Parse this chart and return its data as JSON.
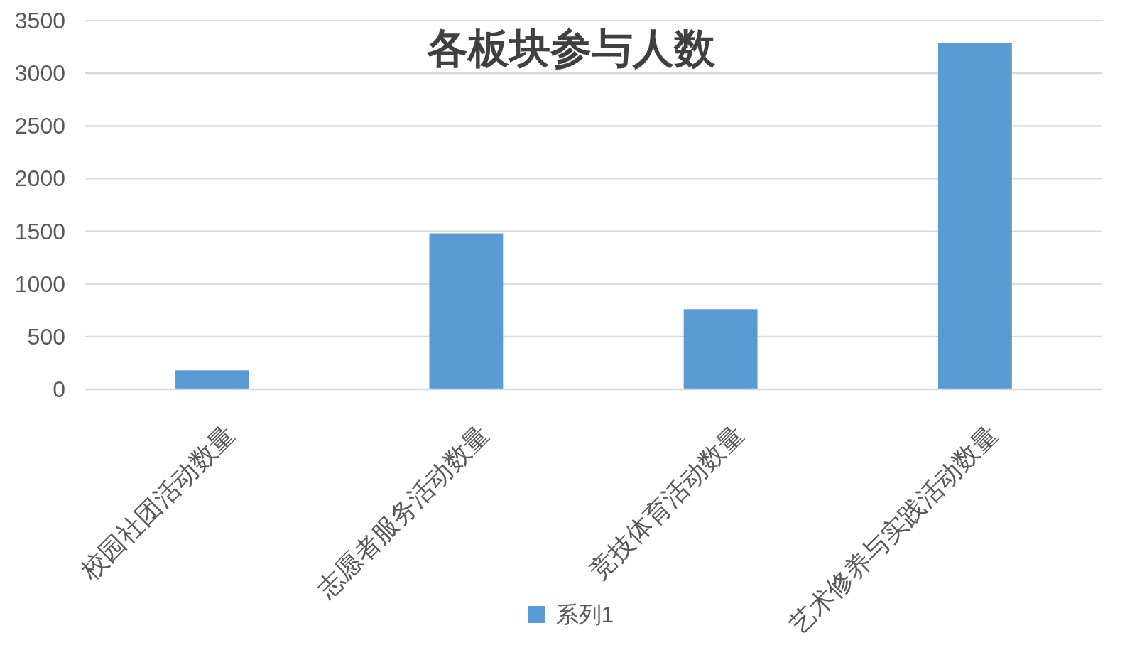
{
  "chart_data": {
    "type": "bar",
    "title": "各板块参与人数",
    "categories": [
      "校园社团活动数量",
      "志愿者服务活动数量",
      "竞技体育活动数量",
      "艺术修养与实践活动数量"
    ],
    "series": [
      {
        "name": "系列1",
        "color": "#5b9bd5",
        "values": [
          180,
          1480,
          760,
          3290
        ]
      }
    ],
    "ylim": [
      0,
      3500
    ],
    "yticks": [
      0,
      500,
      1000,
      1500,
      2000,
      2500,
      3000,
      3500
    ],
    "grid": "y",
    "legend": "bottom"
  }
}
